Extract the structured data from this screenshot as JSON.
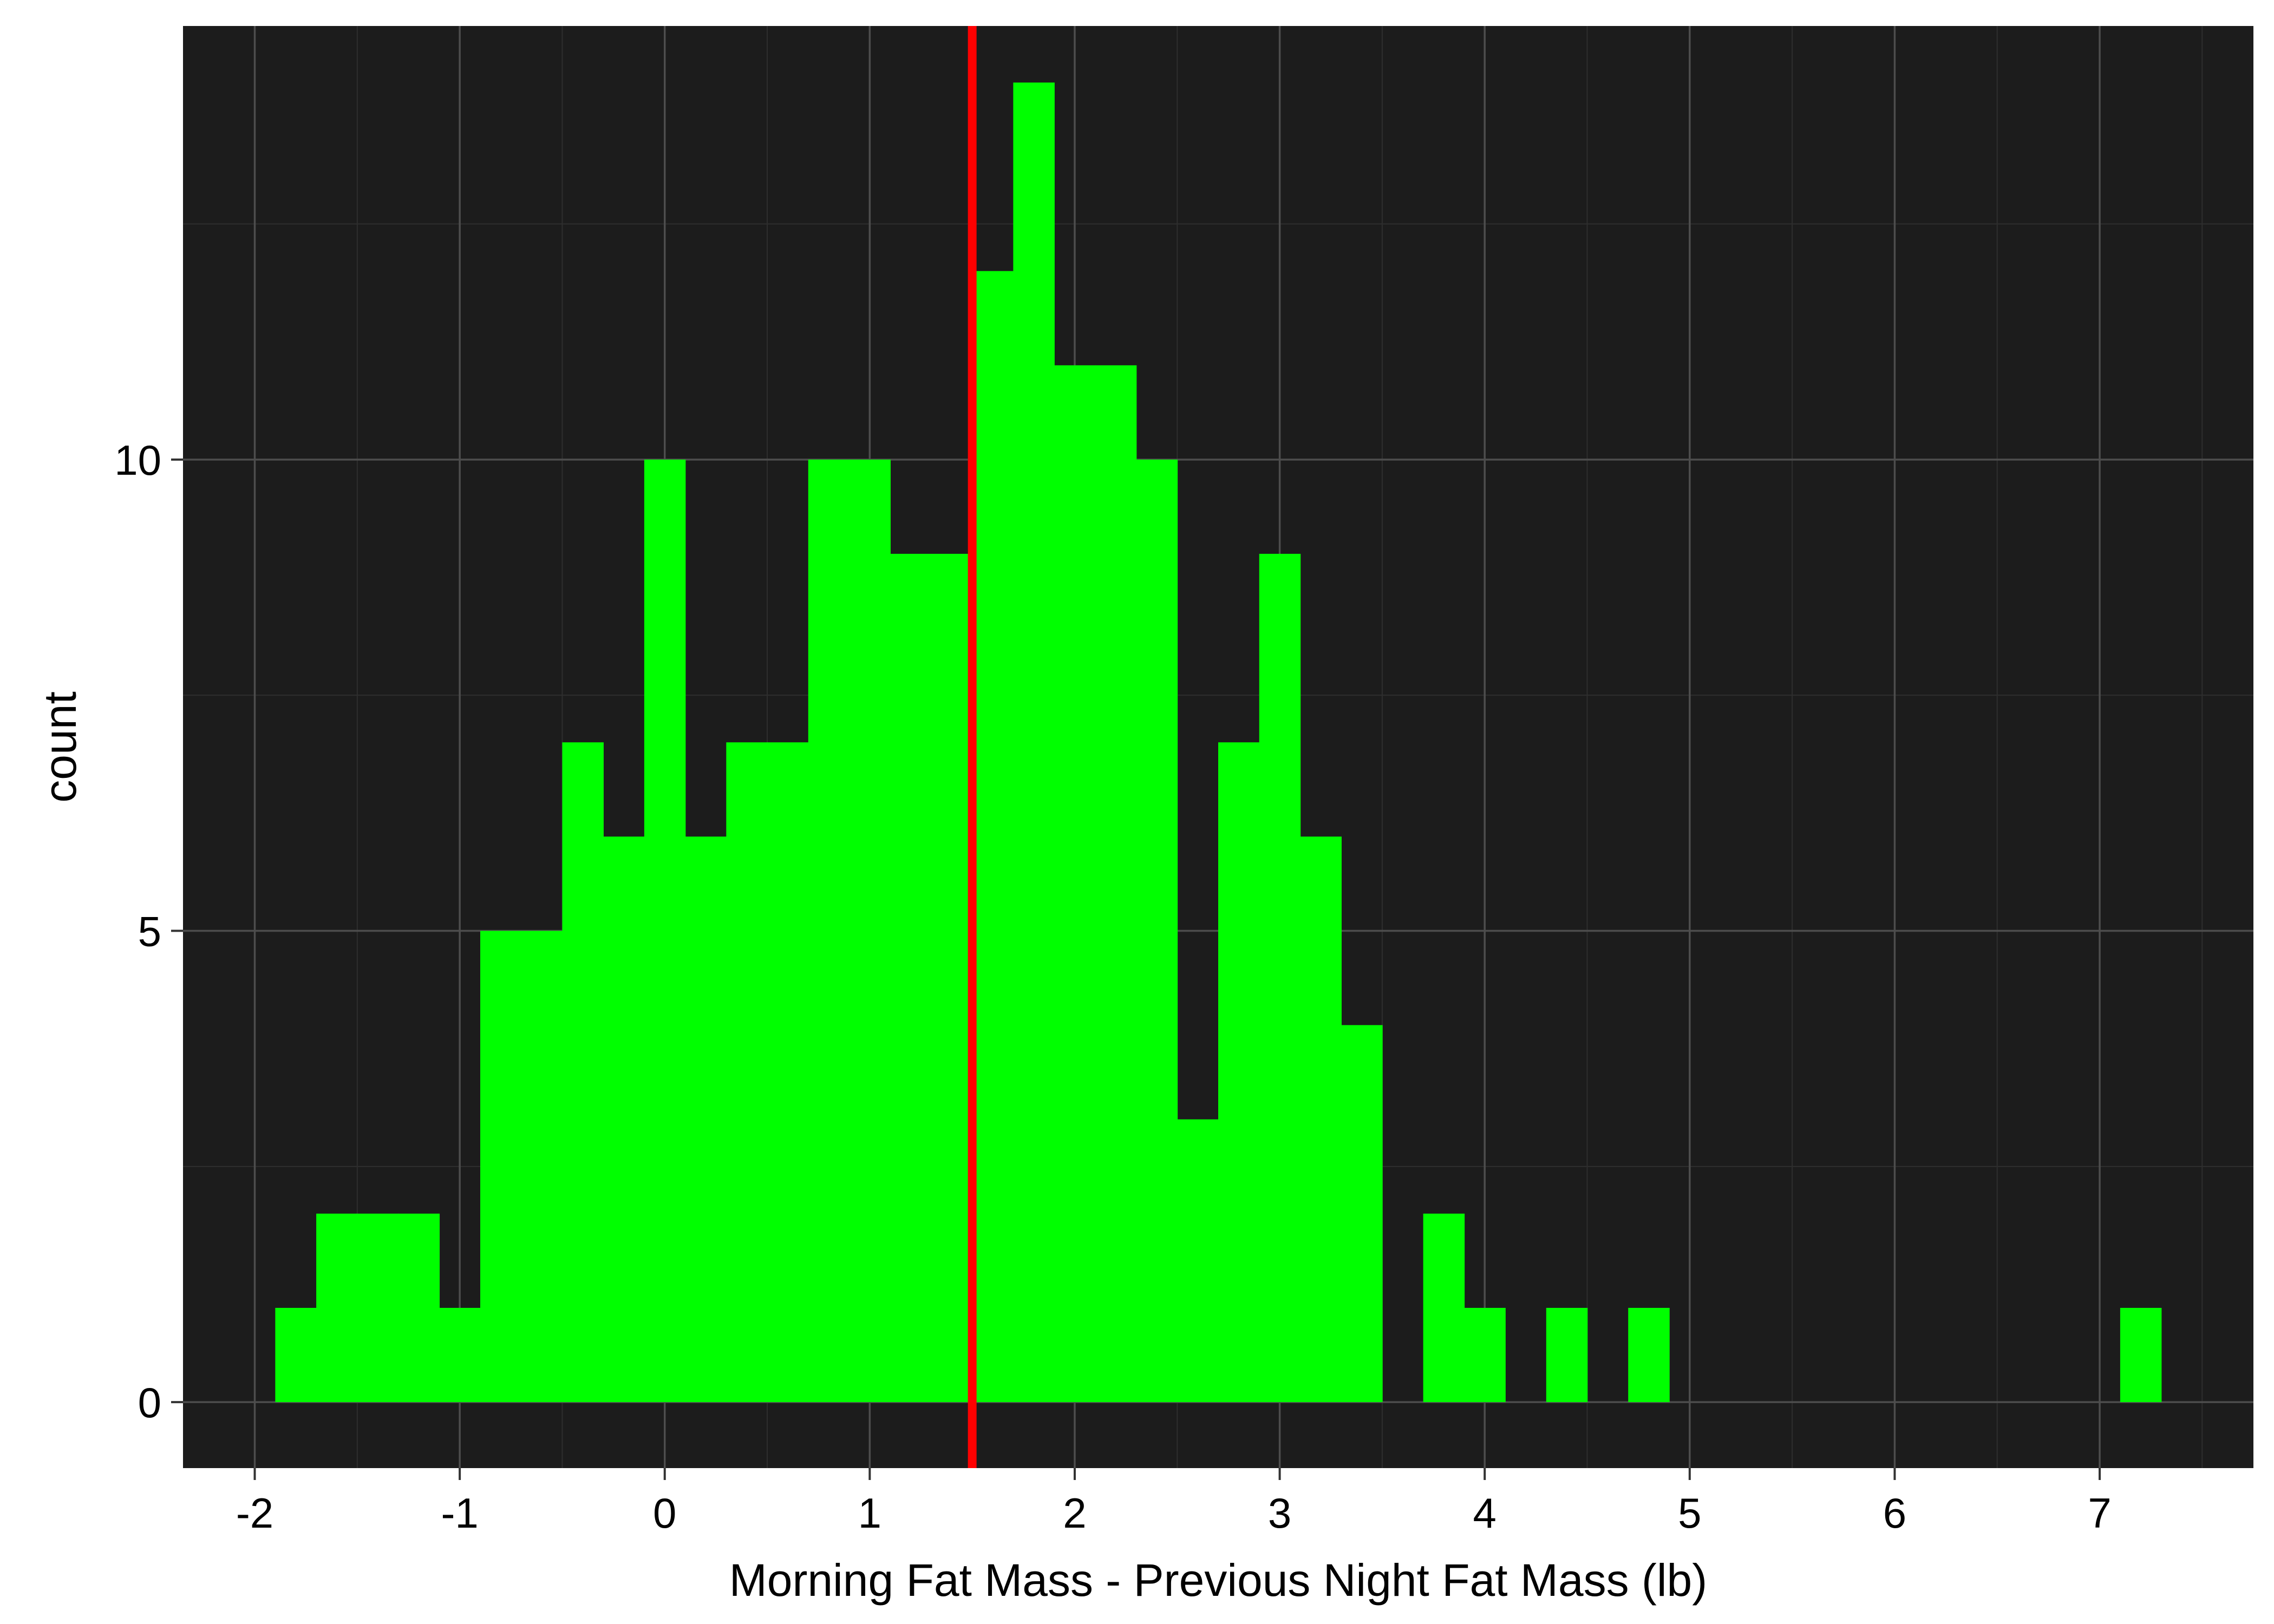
{
  "chart_data": {
    "type": "bar",
    "subtype": "histogram",
    "title": "",
    "xlabel": "Morning Fat Mass - Previous Night Fat Mass (lb)",
    "ylabel": "count",
    "xlim": [
      -2.35,
      7.75
    ],
    "ylim": [
      -0.7,
      14.6
    ],
    "grid": true,
    "legend": "none",
    "x_ticks": [
      -2,
      -1,
      0,
      1,
      2,
      3,
      4,
      5,
      6,
      7
    ],
    "x_tick_labels": [
      "-2",
      "-1",
      "0",
      "1",
      "2",
      "3",
      "4",
      "5",
      "6",
      "7"
    ],
    "y_ticks": [
      0,
      5,
      10
    ],
    "y_tick_labels": [
      "0",
      "5",
      "10"
    ],
    "bin_width": 0.2,
    "bins": [
      {
        "x0": -1.9,
        "x1": -1.7,
        "count": 1
      },
      {
        "x0": -1.7,
        "x1": -1.5,
        "count": 2
      },
      {
        "x0": -1.5,
        "x1": -1.3,
        "count": 2
      },
      {
        "x0": -1.3,
        "x1": -1.1,
        "count": 2
      },
      {
        "x0": -1.1,
        "x1": -0.9,
        "count": 1
      },
      {
        "x0": -0.9,
        "x1": -0.7,
        "count": 5
      },
      {
        "x0": -0.7,
        "x1": -0.5,
        "count": 5
      },
      {
        "x0": -0.5,
        "x1": -0.3,
        "count": 7
      },
      {
        "x0": -0.3,
        "x1": -0.1,
        "count": 6
      },
      {
        "x0": -0.1,
        "x1": 0.1,
        "count": 10
      },
      {
        "x0": 0.1,
        "x1": 0.3,
        "count": 6
      },
      {
        "x0": 0.3,
        "x1": 0.5,
        "count": 7
      },
      {
        "x0": 0.5,
        "x1": 0.7,
        "count": 7
      },
      {
        "x0": 0.7,
        "x1": 0.9,
        "count": 10
      },
      {
        "x0": 0.9,
        "x1": 1.1,
        "count": 10
      },
      {
        "x0": 1.1,
        "x1": 1.3,
        "count": 9
      },
      {
        "x0": 1.3,
        "x1": 1.5,
        "count": 9
      },
      {
        "x0": 1.5,
        "x1": 1.7,
        "count": 12
      },
      {
        "x0": 1.7,
        "x1": 1.9,
        "count": 14
      },
      {
        "x0": 1.9,
        "x1": 2.1,
        "count": 11
      },
      {
        "x0": 2.1,
        "x1": 2.3,
        "count": 11
      },
      {
        "x0": 2.3,
        "x1": 2.5,
        "count": 10
      },
      {
        "x0": 2.5,
        "x1": 2.7,
        "count": 3
      },
      {
        "x0": 2.7,
        "x1": 2.9,
        "count": 7
      },
      {
        "x0": 2.9,
        "x1": 3.1,
        "count": 9
      },
      {
        "x0": 3.1,
        "x1": 3.3,
        "count": 6
      },
      {
        "x0": 3.3,
        "x1": 3.5,
        "count": 4
      },
      {
        "x0": 3.5,
        "x1": 3.7,
        "count": 0
      },
      {
        "x0": 3.7,
        "x1": 3.9,
        "count": 2
      },
      {
        "x0": 3.9,
        "x1": 4.1,
        "count": 1
      },
      {
        "x0": 4.1,
        "x1": 4.3,
        "count": 0
      },
      {
        "x0": 4.3,
        "x1": 4.5,
        "count": 1
      },
      {
        "x0": 4.5,
        "x1": 4.7,
        "count": 0
      },
      {
        "x0": 4.7,
        "x1": 4.9,
        "count": 1
      },
      {
        "x0": 7.1,
        "x1": 7.3,
        "count": 1
      }
    ],
    "reference_line": {
      "x": 1.5,
      "color": "#ff0000"
    },
    "colors": {
      "bar": "#00ff00",
      "panel_background": "#1c1c1c",
      "grid_major": "#4d4d4d",
      "grid_minor": "#2e2e2e",
      "reference_line": "#ff0000"
    }
  }
}
